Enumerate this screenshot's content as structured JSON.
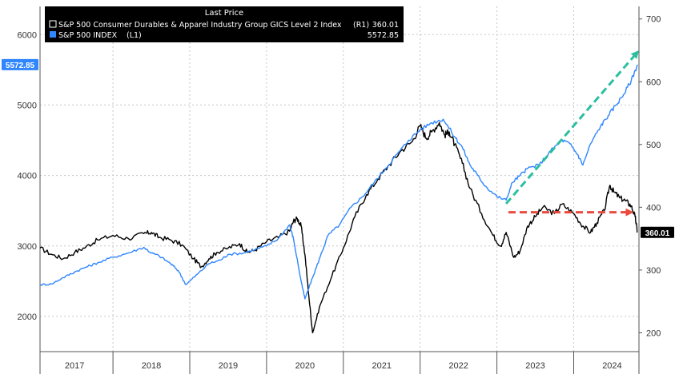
{
  "chart_data": {
    "type": "line",
    "title": "",
    "legend": {
      "title": "Last Price",
      "placement": "top-left",
      "background": "#000000"
    },
    "x_axis": {
      "type": "time",
      "range": [
        2016.55,
        2024.35
      ],
      "tick_labels": [
        "2017",
        "2018",
        "2019",
        "2020",
        "2021",
        "2022",
        "2023",
        "2024"
      ],
      "label_positions": [
        2017.0,
        2018.0,
        2019.0,
        2020.0,
        2021.0,
        2022.0,
        2023.0,
        2024.0
      ],
      "boundaries": [
        2017.5,
        2018.5,
        2019.5,
        2020.5,
        2021.5,
        2022.5,
        2023.5
      ]
    },
    "y_left": {
      "range": [
        1500,
        6400
      ],
      "ticks": [
        2000,
        3000,
        4000,
        5000,
        6000
      ],
      "tick_labels": [
        "2000",
        "3000",
        "4000",
        "5000",
        "6000"
      ]
    },
    "y_right": {
      "range": [
        170,
        720
      ],
      "ticks": [
        200,
        300,
        400,
        500,
        600,
        700
      ],
      "tick_labels": [
        "200",
        "300",
        "400",
        "500",
        "600",
        "700"
      ]
    },
    "grid": true,
    "series": [
      {
        "name": "S&P 500 Consumer Durables & Apparel Industry Group GICS Level 2 Index",
        "axis_tag": "(R1)",
        "last_value": "360.01",
        "axis": "right",
        "color": "#000000",
        "points": [
          [
            2016.55,
            335
          ],
          [
            2016.7,
            325
          ],
          [
            2016.85,
            318
          ],
          [
            2017.0,
            328
          ],
          [
            2017.15,
            337
          ],
          [
            2017.3,
            348
          ],
          [
            2017.5,
            355
          ],
          [
            2017.7,
            350
          ],
          [
            2017.9,
            358
          ],
          [
            2018.0,
            360
          ],
          [
            2018.1,
            352
          ],
          [
            2018.25,
            348
          ],
          [
            2018.4,
            340
          ],
          [
            2018.55,
            318
          ],
          [
            2018.65,
            305
          ],
          [
            2018.75,
            318
          ],
          [
            2018.85,
            328
          ],
          [
            2019.0,
            335
          ],
          [
            2019.15,
            342
          ],
          [
            2019.25,
            328
          ],
          [
            2019.35,
            332
          ],
          [
            2019.5,
            345
          ],
          [
            2019.65,
            352
          ],
          [
            2019.8,
            362
          ],
          [
            2019.85,
            378
          ],
          [
            2019.9,
            382
          ],
          [
            2019.95,
            370
          ],
          [
            2020.0,
            325
          ],
          [
            2020.05,
            260
          ],
          [
            2020.1,
            200
          ],
          [
            2020.2,
            245
          ],
          [
            2020.35,
            290
          ],
          [
            2020.5,
            335
          ],
          [
            2020.65,
            385
          ],
          [
            2020.8,
            420
          ],
          [
            2020.95,
            445
          ],
          [
            2021.1,
            468
          ],
          [
            2021.25,
            490
          ],
          [
            2021.4,
            505
          ],
          [
            2021.5,
            530
          ],
          [
            2021.58,
            510
          ],
          [
            2021.65,
            520
          ],
          [
            2021.75,
            535
          ],
          [
            2021.82,
            515
          ],
          [
            2021.88,
            520
          ],
          [
            2021.95,
            500
          ],
          [
            2022.05,
            470
          ],
          [
            2022.15,
            430
          ],
          [
            2022.3,
            390
          ],
          [
            2022.45,
            355
          ],
          [
            2022.55,
            338
          ],
          [
            2022.62,
            360
          ],
          [
            2022.72,
            320
          ],
          [
            2022.8,
            330
          ],
          [
            2022.9,
            370
          ],
          [
            2023.0,
            385
          ],
          [
            2023.1,
            400
          ],
          [
            2023.25,
            390
          ],
          [
            2023.35,
            405
          ],
          [
            2023.5,
            390
          ],
          [
            2023.62,
            370
          ],
          [
            2023.72,
            360
          ],
          [
            2023.8,
            375
          ],
          [
            2023.9,
            395
          ],
          [
            2023.97,
            435
          ],
          [
            2024.02,
            425
          ],
          [
            2024.1,
            415
          ],
          [
            2024.18,
            410
          ],
          [
            2024.25,
            402
          ],
          [
            2024.3,
            385
          ],
          [
            2024.33,
            360
          ]
        ]
      },
      {
        "name": "S&P 500 INDEX",
        "axis_tag": "(L1)",
        "last_value": "5572.85",
        "axis": "left",
        "color": "#2f86ff",
        "points": [
          [
            2016.55,
            2450
          ],
          [
            2016.7,
            2460
          ],
          [
            2016.85,
            2550
          ],
          [
            2017.0,
            2630
          ],
          [
            2017.15,
            2700
          ],
          [
            2017.3,
            2760
          ],
          [
            2017.5,
            2840
          ],
          [
            2017.7,
            2900
          ],
          [
            2017.9,
            2980
          ],
          [
            2018.0,
            2900
          ],
          [
            2018.1,
            2860
          ],
          [
            2018.25,
            2750
          ],
          [
            2018.35,
            2650
          ],
          [
            2018.45,
            2450
          ],
          [
            2018.6,
            2600
          ],
          [
            2018.75,
            2750
          ],
          [
            2018.9,
            2800
          ],
          [
            2019.0,
            2880
          ],
          [
            2019.2,
            2900
          ],
          [
            2019.35,
            2950
          ],
          [
            2019.5,
            3000
          ],
          [
            2019.65,
            3100
          ],
          [
            2019.8,
            3300
          ],
          [
            2019.85,
            3100
          ],
          [
            2019.95,
            2500
          ],
          [
            2020.0,
            2250
          ],
          [
            2020.1,
            2550
          ],
          [
            2020.2,
            2850
          ],
          [
            2020.3,
            3150
          ],
          [
            2020.45,
            3300
          ],
          [
            2020.6,
            3550
          ],
          [
            2020.75,
            3700
          ],
          [
            2020.9,
            3900
          ],
          [
            2021.05,
            4100
          ],
          [
            2021.2,
            4300
          ],
          [
            2021.35,
            4500
          ],
          [
            2021.5,
            4650
          ],
          [
            2021.65,
            4750
          ],
          [
            2021.8,
            4800
          ],
          [
            2021.95,
            4550
          ],
          [
            2022.05,
            4400
          ],
          [
            2022.15,
            4150
          ],
          [
            2022.25,
            4000
          ],
          [
            2022.35,
            3850
          ],
          [
            2022.5,
            3700
          ],
          [
            2022.62,
            3650
          ],
          [
            2022.7,
            3900
          ],
          [
            2022.8,
            4000
          ],
          [
            2022.9,
            4100
          ],
          [
            2023.05,
            4150
          ],
          [
            2023.2,
            4350
          ],
          [
            2023.35,
            4500
          ],
          [
            2023.45,
            4450
          ],
          [
            2023.55,
            4300
          ],
          [
            2023.62,
            4150
          ],
          [
            2023.72,
            4450
          ],
          [
            2023.85,
            4700
          ],
          [
            2023.95,
            4850
          ],
          [
            2024.05,
            5000
          ],
          [
            2024.15,
            5150
          ],
          [
            2024.25,
            5350
          ],
          [
            2024.33,
            5572.85
          ]
        ]
      }
    ],
    "annotations": [
      {
        "kind": "dashed-arrow",
        "color": "#2bbfa0",
        "from_x": 2022.62,
        "from_y": 3600,
        "to_x": 2024.33,
        "to_y": 5750,
        "y_axis": "left"
      },
      {
        "kind": "dashed-arrow",
        "color": "#e94a3e",
        "from_x": 2022.65,
        "from_y": 392,
        "to_x": 2024.25,
        "to_y": 392,
        "y_axis": "right"
      }
    ],
    "badges": [
      {
        "text": "5572.85",
        "value": 5572.85,
        "axis": "left",
        "bg": "#2f86ff",
        "fg": "#ffffff"
      },
      {
        "text": "360.01",
        "value": 360.01,
        "axis": "right",
        "bg": "#000000",
        "fg": "#ffffff"
      }
    ]
  }
}
